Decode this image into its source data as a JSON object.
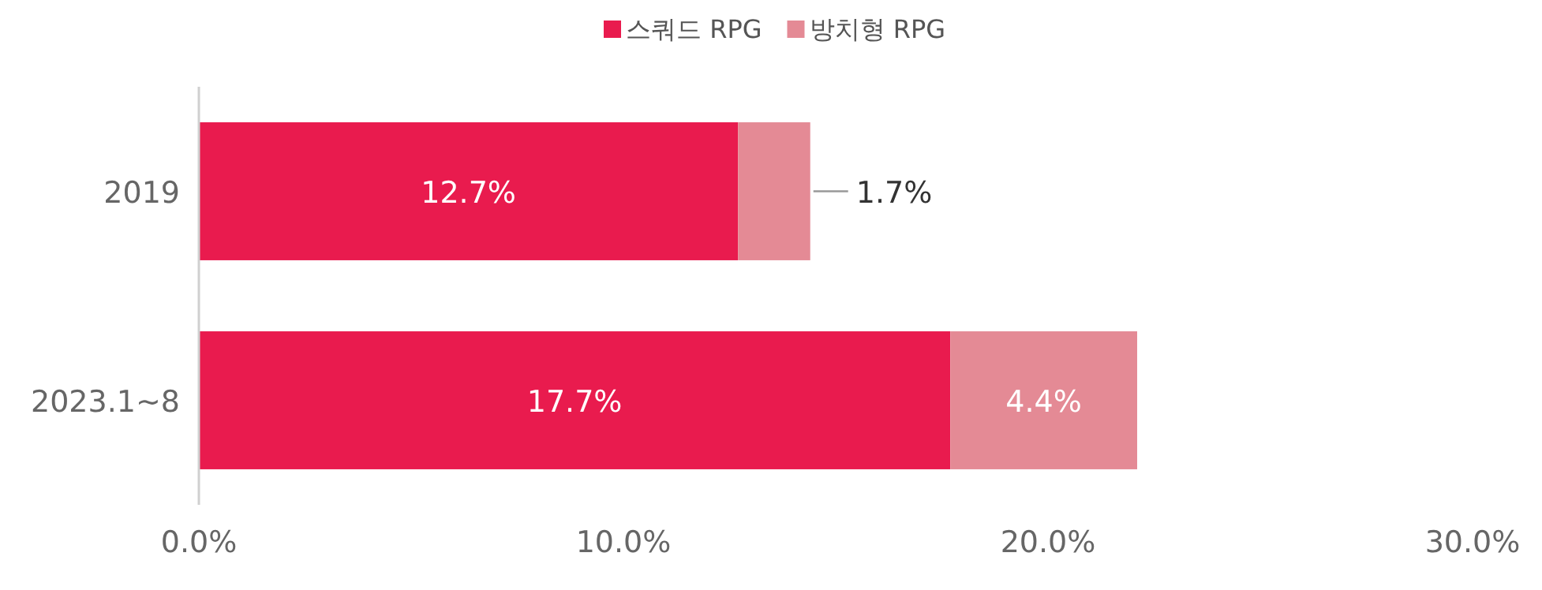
{
  "chart_data": {
    "type": "bar",
    "orientation": "horizontal",
    "stacked": true,
    "categories": [
      "2019",
      "2023.1~8"
    ],
    "series": [
      {
        "name": "스쿼드 RPG",
        "color": "#e91b4e",
        "values": [
          12.7,
          17.7
        ],
        "value_labels": [
          "12.7%",
          "17.7%"
        ]
      },
      {
        "name": "방치형 RPG",
        "color": "#e48a95",
        "values": [
          1.7,
          4.4
        ],
        "value_labels": [
          "1.7%",
          "4.4%"
        ]
      }
    ],
    "xlim": [
      0,
      30
    ],
    "xticks": [
      {
        "value": 0,
        "label": "0.0%"
      },
      {
        "value": 10,
        "label": "10.0%"
      },
      {
        "value": 20,
        "label": "20.0%"
      },
      {
        "value": 30,
        "label": "30.0%"
      }
    ],
    "grid": false,
    "legend": "top"
  }
}
